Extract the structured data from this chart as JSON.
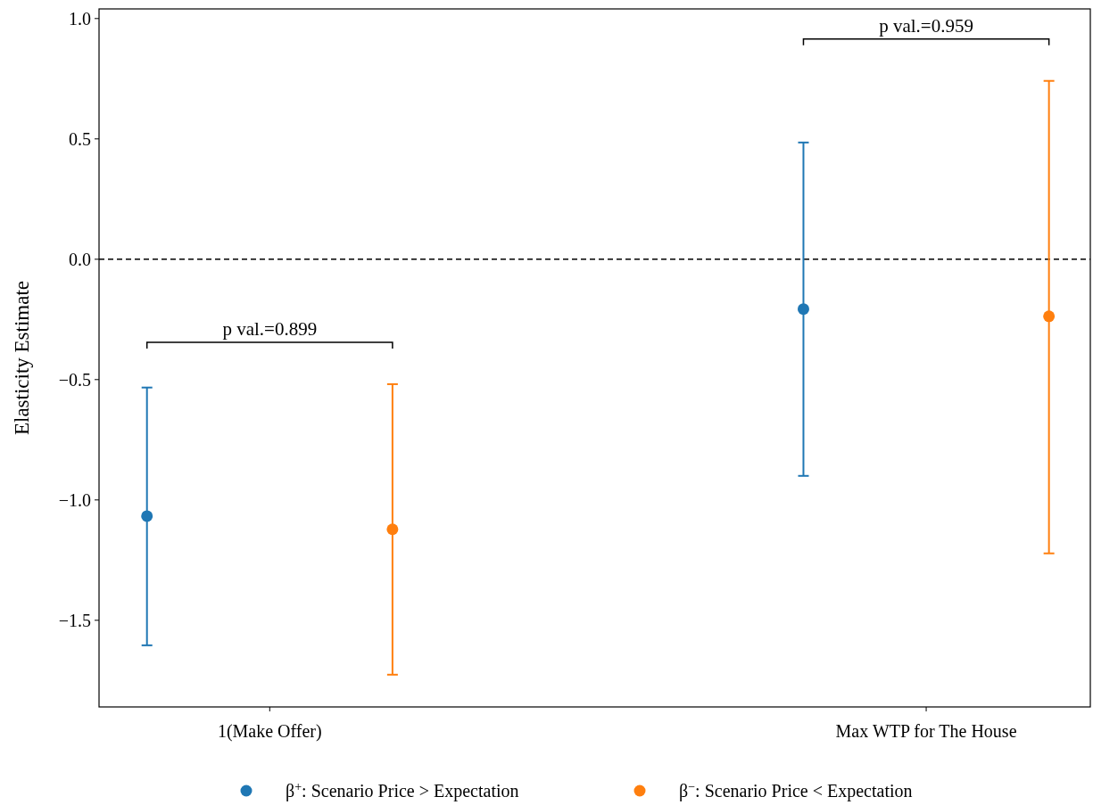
{
  "chart_data": {
    "type": "scatter",
    "ylabel": "Elasticity Estimate",
    "categories": [
      "1(Make Offer)",
      "Max WTP for The House"
    ],
    "ylim": [
      -1.86,
      1.04
    ],
    "yticks": [
      {
        "value": -1.5,
        "label": "−1.5"
      },
      {
        "value": -1,
        "label": "−1.0"
      },
      {
        "value": -0.5,
        "label": "−0.5"
      },
      {
        "value": 0,
        "label": "0.0"
      },
      {
        "value": 0.5,
        "label": "0.5"
      },
      {
        "value": 1,
        "label": "1.0"
      }
    ],
    "series": [
      {
        "name": "β$^{+}$: Scenario Price > Expectation",
        "color": "#1f77b4",
        "values": [
          -1.067,
          -0.207
        ],
        "errors": [
          [
            -1.604,
            -0.533
          ],
          [
            -0.9,
            0.485
          ]
        ]
      },
      {
        "name": "β$^{−}$: Scenario Price < Expectation",
        "color": "#ff7f0e",
        "values": [
          -1.122,
          -0.237
        ],
        "errors": [
          [
            -1.726,
            -0.519
          ],
          [
            -1.222,
            0.741
          ]
        ]
      }
    ],
    "ref_lines": [
      {
        "axis": "y",
        "value": 0,
        "color": "#000000",
        "line_style": "dashed"
      }
    ],
    "annotations": [
      "p val.=0.899",
      "p val.=0.959"
    ],
    "marker": "circle",
    "grid": false,
    "legend": "bottom"
  }
}
